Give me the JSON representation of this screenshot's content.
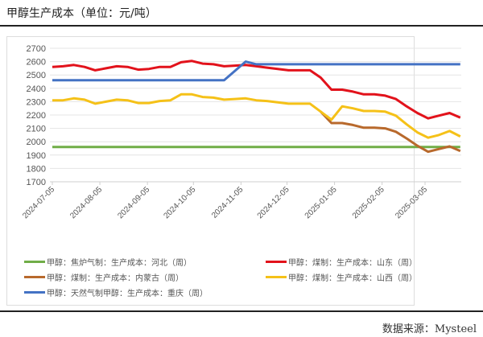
{
  "title": "甲醇生产成本（单位：元/吨）",
  "source": "数据来源：Mysteel",
  "chart_data": {
    "type": "line",
    "ylim": [
      1700,
      2700
    ],
    "yticks": [
      1700,
      1800,
      1900,
      2000,
      2100,
      2200,
      2300,
      2400,
      2500,
      2600,
      2700
    ],
    "xticks": [
      "2024-07-05",
      "2024-08-05",
      "2024-09-05",
      "2024-10-05",
      "2024-11-05",
      "2024-12-05",
      "2025-01-05",
      "2025-02-05",
      "2025-03-05"
    ],
    "grid": true,
    "legend_position": "bottom",
    "x": [
      "2024-07-05",
      "2024-07-12",
      "2024-07-19",
      "2024-07-26",
      "2024-08-02",
      "2024-08-09",
      "2024-08-16",
      "2024-08-23",
      "2024-08-30",
      "2024-09-06",
      "2024-09-13",
      "2024-09-20",
      "2024-09-27",
      "2024-10-04",
      "2024-10-11",
      "2024-10-18",
      "2024-10-25",
      "2024-11-01",
      "2024-11-08",
      "2024-11-15",
      "2024-11-22",
      "2024-11-29",
      "2024-12-06",
      "2024-12-13",
      "2024-12-20",
      "2024-12-27",
      "2025-01-03",
      "2025-01-10",
      "2025-01-17",
      "2025-01-24",
      "2025-01-31",
      "2025-02-07",
      "2025-02-14",
      "2025-02-21",
      "2025-02-28",
      "2025-03-07",
      "2025-03-14",
      "2025-03-21",
      "2025-03-28"
    ],
    "series": [
      {
        "name": "甲醇：焦炉气制：生产成本：河北（周）",
        "color": "#70ad47",
        "values": [
          1960,
          1960,
          1960,
          1960,
          1960,
          1960,
          1960,
          1960,
          1960,
          1960,
          1960,
          1960,
          1960,
          1960,
          1960,
          1960,
          1960,
          1960,
          1960,
          1960,
          1960,
          1960,
          1960,
          1960,
          1960,
          1960,
          1960,
          1960,
          1960,
          1960,
          1960,
          1960,
          1960,
          1960,
          1960,
          1960,
          1960,
          1960,
          1960
        ]
      },
      {
        "name": "甲醇：煤制：生产成本：山东（周）",
        "color": "#e2121b",
        "values": [
          2560,
          2565,
          2575,
          2560,
          2535,
          2550,
          2565,
          2560,
          2540,
          2545,
          2560,
          2560,
          2595,
          2605,
          2585,
          2580,
          2565,
          2570,
          2575,
          2565,
          2555,
          2545,
          2535,
          2535,
          2535,
          2480,
          2390,
          2390,
          2375,
          2355,
          2355,
          2345,
          2320,
          2265,
          2215,
          2175,
          2195,
          2215,
          2180
        ]
      },
      {
        "name": "甲醇：煤制：生产成本：内蒙古（周）",
        "color": "#b8692c",
        "values": [
          null,
          null,
          null,
          null,
          null,
          null,
          null,
          null,
          null,
          null,
          null,
          null,
          null,
          null,
          null,
          null,
          null,
          null,
          null,
          null,
          null,
          null,
          null,
          null,
          null,
          2225,
          2140,
          2140,
          2125,
          2105,
          2105,
          2100,
          2075,
          2025,
          1970,
          1925,
          1945,
          1965,
          1930
        ]
      },
      {
        "name": "甲醇：煤制：生产成本：山西（周）",
        "color": "#f5c118",
        "values": [
          2310,
          2310,
          2325,
          2315,
          2285,
          2300,
          2315,
          2310,
          2290,
          2290,
          2305,
          2310,
          2355,
          2355,
          2335,
          2330,
          2315,
          2320,
          2325,
          2310,
          2305,
          2295,
          2285,
          2285,
          2285,
          2225,
          2165,
          2265,
          2250,
          2230,
          2230,
          2225,
          2195,
          2130,
          2070,
          2030,
          2050,
          2080,
          2040
        ]
      },
      {
        "name": "甲醇：天然气制甲醇：生产成本：重庆（周）",
        "color": "#4472c4",
        "values": [
          2460,
          2460,
          2460,
          2460,
          2460,
          2460,
          2460,
          2460,
          2460,
          2460,
          2460,
          2460,
          2460,
          2460,
          2460,
          2460,
          2460,
          2530,
          2600,
          2580,
          2580,
          2580,
          2580,
          2580,
          2580,
          2580,
          2580,
          2580,
          2580,
          2580,
          2580,
          2580,
          2580,
          2580,
          2580,
          2580,
          2580,
          2580,
          2580
        ]
      }
    ]
  }
}
